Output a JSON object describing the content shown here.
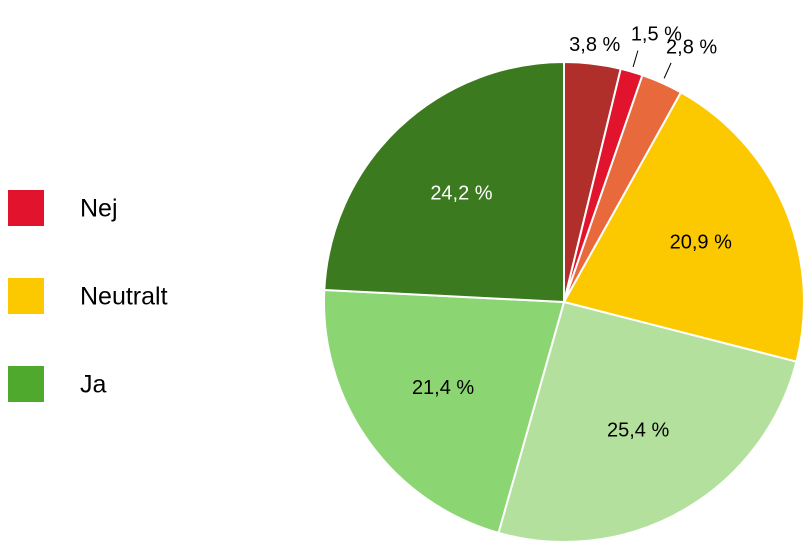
{
  "chart_data": {
    "type": "pie",
    "categories": [
      null,
      null,
      null,
      null,
      null,
      null,
      null
    ],
    "values": [
      3.8,
      1.5,
      2.8,
      20.9,
      25.4,
      21.4,
      24.2
    ],
    "value_labels": [
      "3,8 %",
      "1,5 %",
      "2,8 %",
      "20,9 %",
      "25,4 %",
      "21,4 %",
      "24,2 %"
    ],
    "colors": [
      "#b02f2a",
      "#e2132d",
      "#e86a3c",
      "#fcc900",
      "#b4e09d",
      "#8bd672",
      "#3c7a1f"
    ],
    "legend": [
      {
        "name": "Nej",
        "color": "#e2132d"
      },
      {
        "name": "Neutralt",
        "color": "#fcc900"
      },
      {
        "name": "Ja",
        "color": "#4ea92c"
      }
    ]
  }
}
